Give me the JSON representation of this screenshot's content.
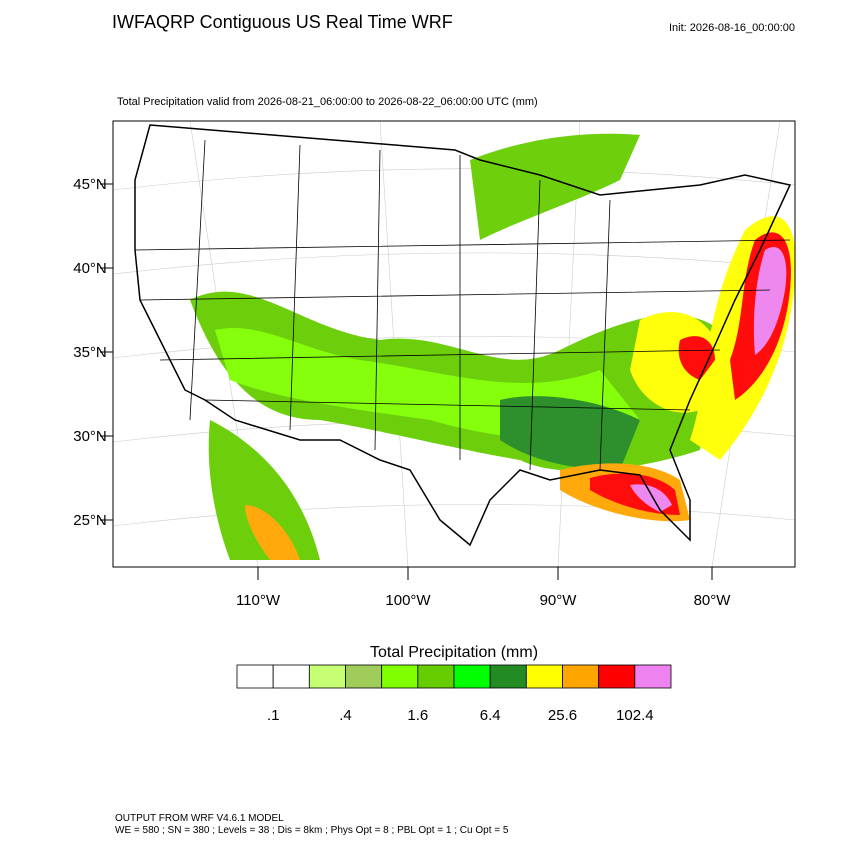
{
  "header": {
    "title": "IWFAQRP Contiguous US Real Time WRF",
    "init": "Init: 2026-08-16_00:00:00"
  },
  "map": {
    "subtitle": "Total Precipitation valid from 2026-08-21_06:00:00 to 2026-08-22_06:00:00 UTC   (mm)",
    "lat_labels": [
      "45°N",
      "40°N",
      "35°N",
      "30°N",
      "25°N"
    ],
    "lon_labels": [
      "110°W",
      "100°W",
      "90°W",
      "80°W"
    ]
  },
  "colorbar": {
    "title": "Total Precipitation  (mm)",
    "colors": [
      "#ffffff",
      "#ffffff",
      "#c6ff73",
      "#a0cd5a",
      "#7fff00",
      "#66cd00",
      "#00ff00",
      "#228b22",
      "#ffff00",
      "#ffa500",
      "#ff0000",
      "#ee82ee"
    ],
    "labels": [
      ".1",
      ".4",
      "1.6",
      "6.4",
      "25.6",
      "102.4"
    ]
  },
  "footer": {
    "line1": "OUTPUT FROM WRF V4.6.1 MODEL",
    "line2": "WE = 580 ; SN = 380 ; Levels = 38 ; Dis = 8km ; Phys Opt = 8 ; PBL Opt = 1 ; Cu Opt = 5"
  }
}
